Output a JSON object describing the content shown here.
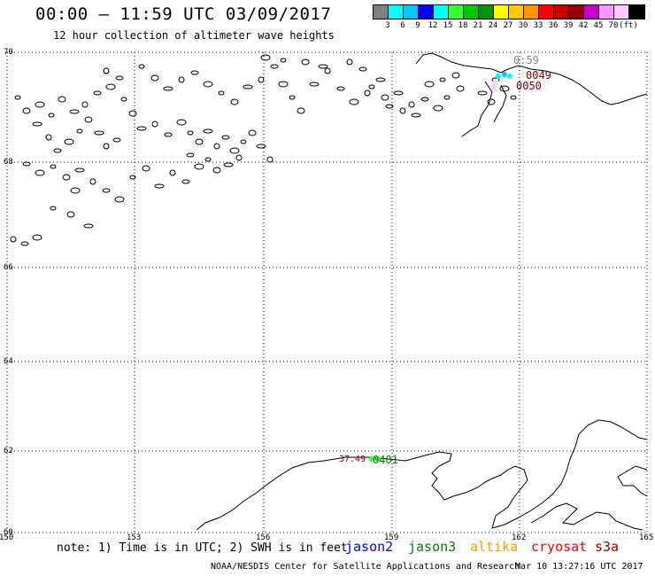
{
  "title": "00:00 – 11:59 UTC 03/09/2017",
  "subtitle": "12 hour collection of altimeter wave heights",
  "legend": {
    "colors": [
      "#808080",
      "#00ffff",
      "#00c8ff",
      "#0000ff",
      "#00ffff",
      "#32ff32",
      "#00c800",
      "#009600",
      "#ffff00",
      "#ffc800",
      "#ff9600",
      "#ff0000",
      "#c80000",
      "#960000",
      "#c800c8",
      "#ff96ff",
      "#ffc8ff",
      "#000000"
    ],
    "labels": [
      "3",
      "6",
      "9",
      "12",
      "15",
      "18",
      "21",
      "24",
      "27",
      "30",
      "33",
      "36",
      "39",
      "42",
      "45",
      "70",
      "(ft)"
    ]
  },
  "lat_labels": [
    "70",
    "68",
    "66",
    "64",
    "62",
    "60"
  ],
  "lon_labels": [
    "150",
    "153",
    "156",
    "159",
    "162",
    "165"
  ],
  "track_labels": [
    {
      "text": "0:59",
      "color": "#888888"
    },
    {
      "text": "0049",
      "color": "#7f0000"
    },
    {
      "text": "0050",
      "color": "#7f0000"
    },
    {
      "text": "37.49",
      "color": "#7f0000"
    },
    {
      "text": "0401",
      "color": "#008000"
    }
  ],
  "note": "note: 1) Time is in UTC; 2) SWH is in feet",
  "satellites": [
    {
      "name": "jason2",
      "color": "#0000ff"
    },
    {
      "name": "jason3",
      "color": "#008000"
    },
    {
      "name": "altika",
      "color": "#ff9900"
    },
    {
      "name": "cryosat",
      "color": "#ff0000"
    },
    {
      "name": "s3a",
      "color": "#a00000"
    }
  ],
  "footer_left": "NOAA/NESDIS Center for Satellite Applications and Research",
  "footer_right": "Mar 10 13:27:16 UTC 2017"
}
